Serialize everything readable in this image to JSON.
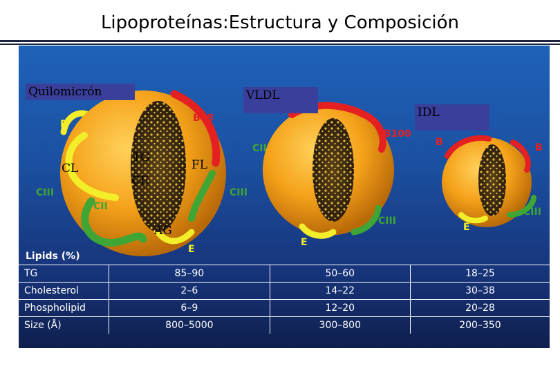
{
  "title": "Lipoproteínas:Estructura y Composición",
  "particles": {
    "chylomicron": {
      "name": "Quilomicrón",
      "inner_labels": [
        "TG",
        "CE",
        "AG"
      ],
      "outer_labels": [
        "CL",
        "FL"
      ],
      "apolipoproteins": [
        "E",
        "B48",
        "CIII",
        "CII",
        "CIII",
        "E"
      ]
    },
    "vldl": {
      "name": "VLDL",
      "apolipoproteins": [
        "B100",
        "CII",
        "CIII",
        "E"
      ]
    },
    "idl": {
      "name": "IDL",
      "apolipoproteins": [
        "B",
        "B",
        "CIII",
        "E"
      ]
    }
  },
  "table": {
    "header": "Lipids (%)",
    "rows": [
      {
        "label": "TG",
        "values": [
          "85–90",
          "50–60",
          "18–25"
        ]
      },
      {
        "label": "Cholesterol",
        "values": [
          "2–6",
          "14–22",
          "30–38"
        ]
      },
      {
        "label": "Phospholipid",
        "values": [
          "6–9",
          "12–20",
          "20–28"
        ]
      },
      {
        "label": "Size (Å)",
        "values": [
          "800–5000",
          "300–800",
          "200–350"
        ]
      }
    ]
  },
  "colors": {
    "sphere": "#f5a21a",
    "core": "#3a2a10",
    "apo_red": "#e52020",
    "apo_yellow": "#f2ee2a",
    "apo_green": "#3fa535",
    "label_box": "#3a3f9b"
  }
}
